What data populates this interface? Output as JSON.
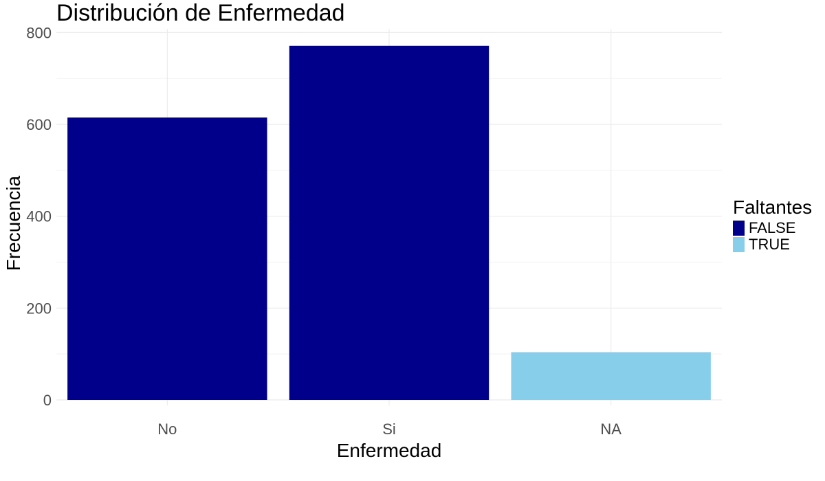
{
  "chart_data": {
    "type": "bar",
    "title": "Distribución de Enfermedad",
    "xlabel": "Enfermedad",
    "ylabel": "Frecuencia",
    "categories": [
      "No",
      "Si",
      "NA"
    ],
    "values": [
      615,
      771,
      104
    ],
    "fill_groups": [
      "FALSE",
      "FALSE",
      "TRUE"
    ],
    "ylim": [
      0,
      800
    ],
    "yticks": [
      0,
      200,
      400,
      600,
      800
    ],
    "grid": true,
    "legend": {
      "title": "Faltantes",
      "placement": "right",
      "entries": [
        {
          "label": "FALSE",
          "color": "#00008B"
        },
        {
          "label": "TRUE",
          "color": "#87CEEB"
        }
      ]
    }
  }
}
